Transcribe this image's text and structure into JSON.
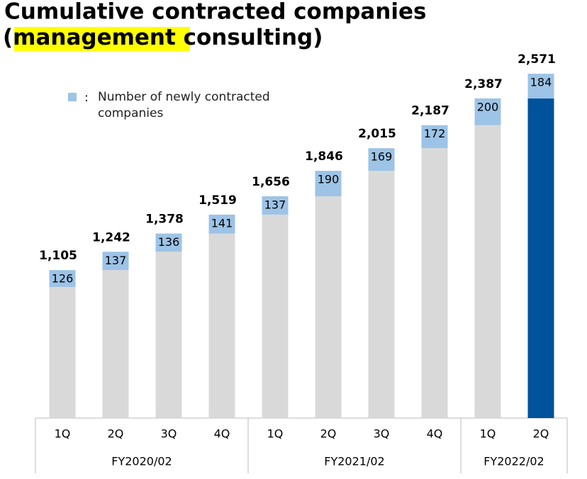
{
  "chart_data": {
    "type": "stacked-bar",
    "title_line1": "Cumulative contracted companies",
    "title_open": "(",
    "title_highlight": "management",
    "title_close": " consulting)",
    "legend_separator": ":",
    "groups": [
      {
        "label": "FY2020/02",
        "categories": [
          "1Q",
          "2Q",
          "3Q",
          "4Q"
        ]
      },
      {
        "label": "FY2021/02",
        "categories": [
          "1Q",
          "2Q",
          "3Q",
          "4Q"
        ]
      },
      {
        "label": "FY2022/02",
        "categories": [
          "1Q",
          "2Q"
        ]
      }
    ],
    "series": [
      {
        "values": [
          979,
          1105,
          1242,
          1378,
          1519,
          1656,
          1846,
          2015,
          2187,
          2387
        ],
        "colors": [
          "#d9d9d9",
          "#d9d9d9",
          "#d9d9d9",
          "#d9d9d9",
          "#d9d9d9",
          "#d9d9d9",
          "#d9d9d9",
          "#d9d9d9",
          "#d9d9d9",
          "#00539b"
        ]
      },
      {
        "name": "Number of newly contracted companies",
        "color": "#9dc3e6",
        "values": [
          126,
          137,
          136,
          141,
          137,
          190,
          169,
          172,
          200,
          184
        ]
      }
    ],
    "totals": {
      "values": [
        1105,
        1242,
        1378,
        1519,
        1656,
        1846,
        2015,
        2187,
        2387,
        2571
      ],
      "value_labels": [
        "1,105",
        "1,242",
        "1,378",
        "1,519",
        "1,656",
        "1,846",
        "2,015",
        "2,187",
        "2,387",
        "2,571"
      ]
    }
  }
}
